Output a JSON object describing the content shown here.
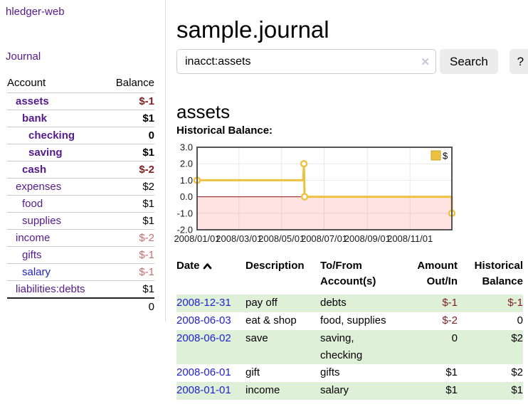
{
  "colors": {
    "link_purple": "#551a8b",
    "link_blue": "#2222cc",
    "negative_dark": "#7f1f1f",
    "negative_light": "#c47070",
    "row_green": "#dff0d8",
    "chart_line": "#edc240",
    "chart_zero_line": "#8b1a1a",
    "chart_border": "#545454"
  },
  "sidebar": {
    "brand": "hledger-web",
    "journal_link": "Journal",
    "account_header": "Account",
    "balance_header": "Balance",
    "accounts": [
      {
        "name": "assets",
        "balance": "$-1"
      },
      {
        "name": "bank",
        "balance": "$1"
      },
      {
        "name": "checking",
        "balance": "0"
      },
      {
        "name": "saving",
        "balance": "$1"
      },
      {
        "name": "cash",
        "balance": "$-2"
      },
      {
        "name": "expenses",
        "balance": "$2"
      },
      {
        "name": "food",
        "balance": "$1"
      },
      {
        "name": "supplies",
        "balance": "$1"
      },
      {
        "name": "income",
        "balance": "$-2"
      },
      {
        "name": "gifts",
        "balance": "$-1"
      },
      {
        "name": "salary",
        "balance": "$-1"
      },
      {
        "name": "liabilities:debts",
        "balance": "$1"
      }
    ],
    "total": "0"
  },
  "header": {
    "title": "sample.journal"
  },
  "search": {
    "value": "inacct:assets",
    "clear_icon": "✕",
    "button_label": "Search",
    "help_label": "?"
  },
  "register": {
    "heading": "assets",
    "chart_title": "Historical Balance:",
    "table": {
      "headers": {
        "date": "Date",
        "description": "Description",
        "account_line1": "To/From",
        "account_line2": "Account(s)",
        "amount_line1": "Amount",
        "amount_line2": "Out/In",
        "balance_line1": "Historical",
        "balance_line2": "Balance"
      },
      "rows": [
        {
          "date": "2008-12-31",
          "description": "pay off",
          "accounts": "debts",
          "amount": "$-1",
          "balance": "$-1"
        },
        {
          "date": "2008-06-03",
          "description": "eat & shop",
          "accounts": "food, supplies",
          "amount": "$-2",
          "balance": "0"
        },
        {
          "date": "2008-06-02",
          "description": "save",
          "accounts": "saving, checking",
          "amount": "0",
          "balance": "$2"
        },
        {
          "date": "2008-06-01",
          "description": "gift",
          "accounts": "gifts",
          "amount": "$1",
          "balance": "$2"
        },
        {
          "date": "2008-01-01",
          "description": "income",
          "accounts": "salary",
          "amount": "$1",
          "balance": "$1"
        }
      ]
    }
  },
  "chart_data": {
    "type": "line",
    "title": "Historical Balance:",
    "xlim": [
      "2008-01-01",
      "2008-12-31"
    ],
    "ylim": [
      -2,
      3
    ],
    "yticks": [
      {
        "v": 3,
        "label": "3.0"
      },
      {
        "v": 2,
        "label": "2.0"
      },
      {
        "v": 1,
        "label": "1.0"
      },
      {
        "v": 0,
        "label": "0.0"
      },
      {
        "v": -1,
        "label": "-1.0"
      },
      {
        "v": -2,
        "label": "-2.0"
      }
    ],
    "xticks": [
      {
        "date": "2008-01-01",
        "label": "2008/01/01"
      },
      {
        "date": "2008-03-01",
        "label": "2008/03/01"
      },
      {
        "date": "2008-05-01",
        "label": "2008/05/01"
      },
      {
        "date": "2008-07-01",
        "label": "2008/07/01"
      },
      {
        "date": "2008-09-01",
        "label": "2008/09/01"
      },
      {
        "date": "2008-11-01",
        "label": "2008/11/01"
      }
    ],
    "grid": true,
    "legend_position": "top-right",
    "negative_region_shaded": true,
    "series": [
      {
        "name": "$",
        "color": "#edc240",
        "points": [
          [
            "2008-01-01",
            1
          ],
          [
            "2008-06-01",
            1
          ],
          [
            "2008-06-02",
            2
          ],
          [
            "2008-06-03",
            0
          ],
          [
            "2008-12-31",
            0
          ],
          [
            "2008-12-31",
            -1
          ]
        ],
        "markers": [
          [
            "2008-01-01",
            1
          ],
          [
            "2008-06-02",
            2
          ],
          [
            "2008-06-03",
            0
          ],
          [
            "2008-12-31",
            -1
          ]
        ]
      }
    ]
  }
}
